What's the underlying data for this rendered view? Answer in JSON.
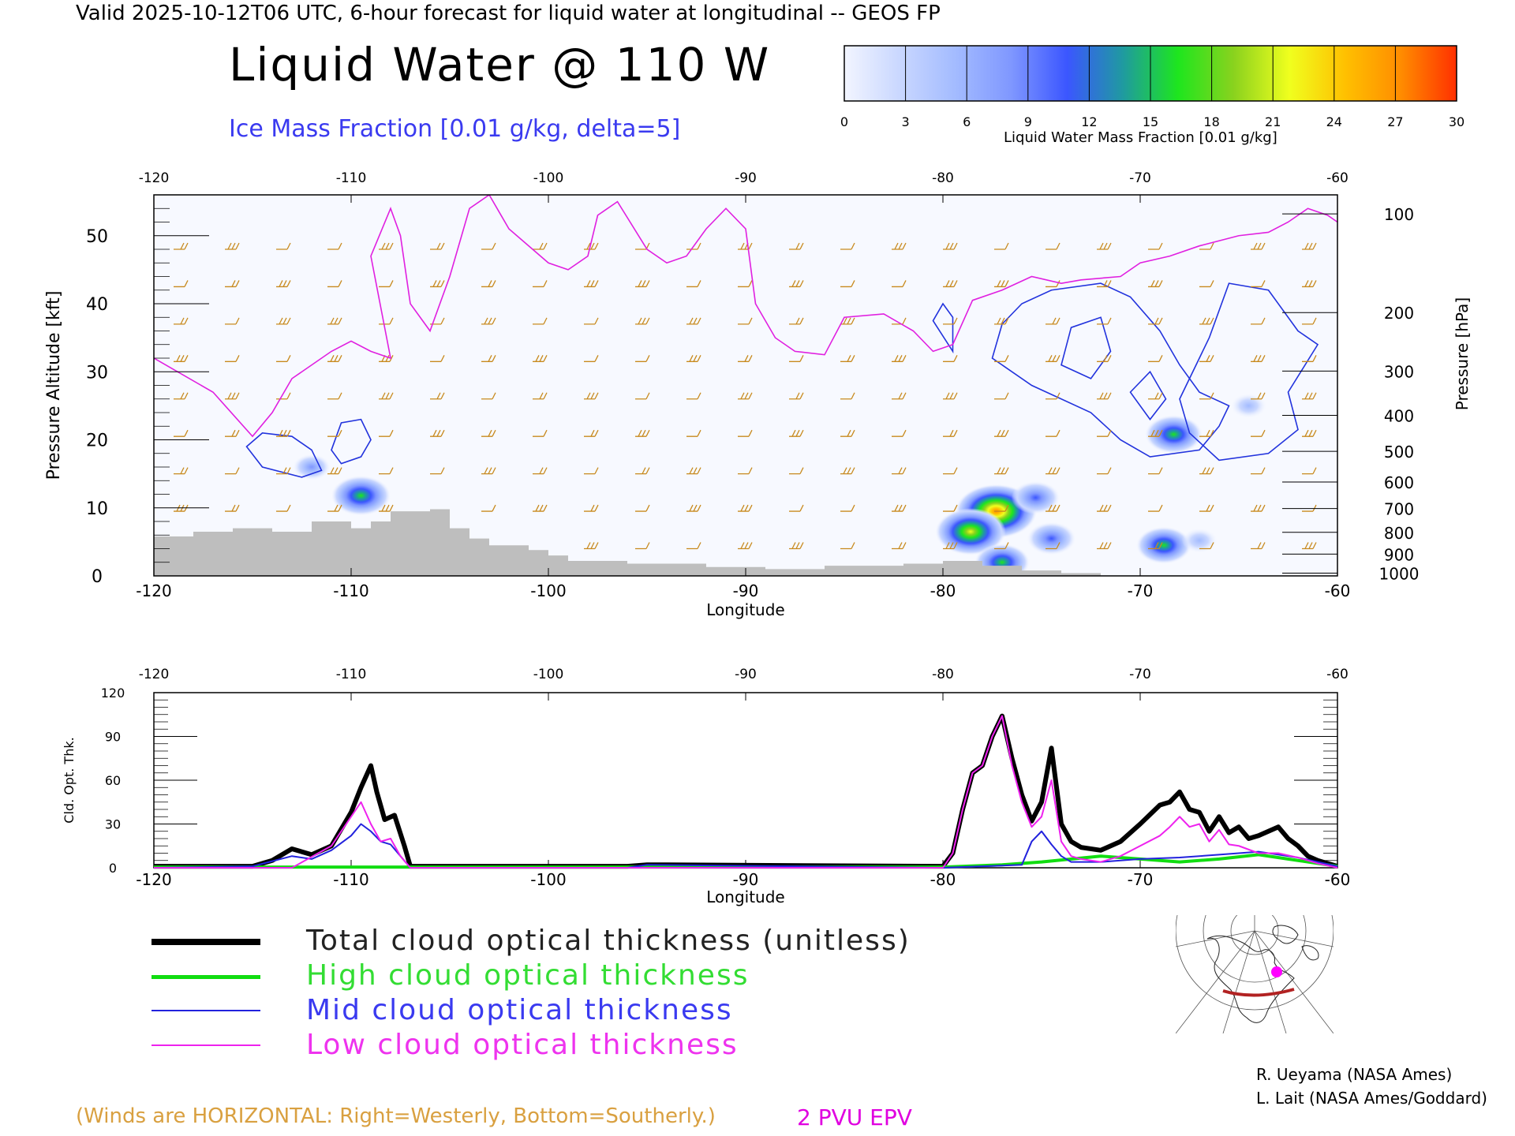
{
  "header": {
    "top_line": "Valid 2025-10-12T06 UTC, 6-hour forecast for liquid water at longitudinal -- GEOS FP",
    "title": "Liquid Water @ 110 W",
    "subtitle": "Ice Mass Fraction [0.01 g/kg, delta=5]"
  },
  "colorbar": {
    "label": "Liquid Water Mass Fraction [0.01 g/kg]",
    "ticks": [
      "0",
      "3",
      "6",
      "9",
      "12",
      "15",
      "18",
      "21",
      "24",
      "27",
      "30"
    ],
    "colors": [
      "#f2f5ff",
      "#c9d7ff",
      "#a3bbff",
      "#7f97ff",
      "#3b56ff",
      "#1f9aa0",
      "#1ee61e",
      "#8ad21e",
      "#f0ff1e",
      "#ffc000",
      "#ff8c00",
      "#ff3000"
    ]
  },
  "chart_data": [
    {
      "type": "heatmap",
      "name_hint": "cross-section",
      "xlabel": "Longitude",
      "ylabel": "Pressure Altitude [kft]",
      "ylabel_right": "Pressure [hPa]",
      "xlim": [
        -120,
        -60
      ],
      "ylim": [
        0,
        56
      ],
      "x_ticks": [
        "-120",
        "-110",
        "-100",
        "-90",
        "-80",
        "-70",
        "-60"
      ],
      "x_tick_values": [
        -120,
        -110,
        -100,
        -90,
        -80,
        -70,
        -60
      ],
      "y_ticks": [
        "0",
        "10",
        "20",
        "30",
        "40",
        "50"
      ],
      "y_tick_values": [
        0,
        10,
        20,
        30,
        40,
        50
      ],
      "pressure_ticks": [
        "100",
        "200",
        "300",
        "400",
        "500",
        "600",
        "700",
        "800",
        "900",
        "1000"
      ],
      "pressure_tick_altitudes": [
        53.2,
        38.7,
        30.1,
        23.6,
        18.3,
        13.8,
        9.9,
        6.4,
        3.2,
        0.4
      ],
      "terrain": {
        "color": "#bebebe",
        "points": [
          [
            -120,
            5.8
          ],
          [
            -118,
            6.5
          ],
          [
            -116,
            7.0
          ],
          [
            -114,
            6.5
          ],
          [
            -112,
            8.0
          ],
          [
            -110,
            7.0
          ],
          [
            -109,
            8.0
          ],
          [
            -108,
            9.5
          ],
          [
            -106,
            9.8
          ],
          [
            -105,
            7.0
          ],
          [
            -104,
            5.5
          ],
          [
            -103,
            4.5
          ],
          [
            -101,
            3.8
          ],
          [
            -100,
            3.0
          ],
          [
            -99,
            2.2
          ],
          [
            -96,
            1.8
          ],
          [
            -92,
            1.3
          ],
          [
            -89,
            1.0
          ],
          [
            -86,
            1.5
          ],
          [
            -82,
            1.8
          ],
          [
            -80,
            2.2
          ],
          [
            -78,
            1.5
          ],
          [
            -76,
            0.8
          ],
          [
            -74,
            0.4
          ],
          [
            -72,
            0.2
          ]
        ]
      },
      "liquid_water_blobs": [
        {
          "lon": -109.5,
          "alt": 11.8,
          "peak": 17
        },
        {
          "lon": -112.0,
          "alt": 16.0,
          "peak": 7
        },
        {
          "lon": -77.3,
          "alt": 9.5,
          "peak": 27
        },
        {
          "lon": -78.6,
          "alt": 6.5,
          "peak": 22
        },
        {
          "lon": -77.0,
          "alt": 2.0,
          "peak": 15
        },
        {
          "lon": -75.3,
          "alt": 11.5,
          "peak": 12
        },
        {
          "lon": -74.5,
          "alt": 5.5,
          "peak": 12
        },
        {
          "lon": -68.3,
          "alt": 20.8,
          "peak": 16
        },
        {
          "lon": -68.8,
          "alt": 4.5,
          "peak": 15
        },
        {
          "lon": -64.5,
          "alt": 25.0,
          "peak": 6
        },
        {
          "lon": -67.0,
          "alt": 5.2,
          "peak": 6
        }
      ],
      "epv_2pvu": [
        [
          -120,
          32
        ],
        [
          -117,
          27
        ],
        [
          -115,
          20.5
        ],
        [
          -114,
          24
        ],
        [
          -113,
          29
        ],
        [
          -111,
          33
        ],
        [
          -110,
          34.5
        ],
        [
          -109,
          33
        ],
        [
          -108,
          32
        ],
        [
          -109,
          47
        ],
        [
          -108,
          54
        ],
        [
          -107.5,
          50
        ],
        [
          -107,
          40
        ],
        [
          -106,
          36
        ],
        [
          -105,
          44
        ],
        [
          -104,
          54
        ],
        [
          -103,
          56
        ],
        [
          -102,
          51
        ],
        [
          -100,
          46
        ],
        [
          -99,
          45
        ],
        [
          -98,
          47
        ],
        [
          -97.5,
          53
        ],
        [
          -96.5,
          55
        ],
        [
          -95,
          48
        ],
        [
          -94,
          46
        ],
        [
          -93,
          47
        ],
        [
          -92,
          51
        ],
        [
          -91,
          54
        ],
        [
          -90,
          51
        ],
        [
          -89.5,
          40
        ],
        [
          -88.5,
          35
        ],
        [
          -87.5,
          33
        ],
        [
          -86,
          32.5
        ],
        [
          -85,
          38
        ],
        [
          -83,
          38.5
        ],
        [
          -81.5,
          36
        ],
        [
          -80.5,
          33
        ],
        [
          -79.5,
          34
        ],
        [
          -78.5,
          40.5
        ],
        [
          -77,
          42
        ],
        [
          -75.5,
          44
        ],
        [
          -74,
          43
        ],
        [
          -73,
          43.5
        ],
        [
          -71,
          44
        ],
        [
          -70,
          46
        ],
        [
          -68.5,
          47
        ],
        [
          -67,
          48.5
        ],
        [
          -65,
          50
        ],
        [
          -63.5,
          50.5
        ],
        [
          -62.5,
          52
        ],
        [
          -61.5,
          54
        ],
        [
          -60.5,
          53
        ],
        [
          -60,
          52
        ]
      ],
      "ice_contours": [
        [
          [
            -115.3,
            19
          ],
          [
            -114.5,
            21
          ],
          [
            -113,
            20.5
          ],
          [
            -112,
            18.5
          ],
          [
            -111.5,
            15.5
          ],
          [
            -112.5,
            14.5
          ],
          [
            -114.5,
            16
          ],
          [
            -115.3,
            19
          ]
        ],
        [
          [
            -111,
            18.5
          ],
          [
            -110.5,
            22.5
          ],
          [
            -109.5,
            23
          ],
          [
            -109,
            20
          ],
          [
            -109.5,
            17.5
          ],
          [
            -110.5,
            16.5
          ],
          [
            -111,
            18.5
          ]
        ],
        [
          [
            -74.5,
            42
          ],
          [
            -72,
            43
          ],
          [
            -70.5,
            41
          ],
          [
            -69,
            36
          ],
          [
            -68,
            31
          ],
          [
            -67,
            27
          ],
          [
            -65.5,
            25
          ],
          [
            -66,
            22
          ],
          [
            -67,
            18.5
          ],
          [
            -69.5,
            17.5
          ],
          [
            -71,
            20
          ],
          [
            -72.5,
            24
          ],
          [
            -75.5,
            28
          ],
          [
            -77.5,
            32
          ],
          [
            -77,
            37
          ],
          [
            -76,
            40
          ],
          [
            -74.5,
            42
          ]
        ],
        [
          [
            -66.5,
            35
          ],
          [
            -65.5,
            43
          ],
          [
            -63.5,
            42
          ],
          [
            -62,
            36
          ],
          [
            -61,
            34
          ],
          [
            -62.5,
            27
          ],
          [
            -62,
            21.5
          ],
          [
            -63.5,
            18
          ],
          [
            -66,
            17
          ],
          [
            -67.5,
            21
          ],
          [
            -68,
            26
          ],
          [
            -66.5,
            35
          ]
        ],
        [
          [
            -80.5,
            37.5
          ],
          [
            -80,
            40
          ],
          [
            -79.5,
            38
          ],
          [
            -79.5,
            33
          ],
          [
            -80.5,
            37.5
          ]
        ],
        [
          [
            -73.5,
            36.5
          ],
          [
            -72,
            38
          ],
          [
            -71.5,
            33
          ],
          [
            -72.5,
            29
          ],
          [
            -74,
            31
          ],
          [
            -73.5,
            36.5
          ]
        ],
        [
          [
            -70.5,
            27
          ],
          [
            -69.5,
            30
          ],
          [
            -68.7,
            26
          ],
          [
            -69.5,
            23
          ],
          [
            -70.5,
            27
          ]
        ]
      ]
    },
    {
      "type": "line",
      "xlabel": "Longitude",
      "ylabel": "Cld. Opt. Thk.",
      "xlim": [
        -120,
        -60
      ],
      "ylim": [
        0,
        120
      ],
      "x_ticks": [
        "-120",
        "-110",
        "-100",
        "-90",
        "-80",
        "-70",
        "-60"
      ],
      "x_tick_values": [
        -120,
        -110,
        -100,
        -90,
        -80,
        -70,
        -60
      ],
      "y_ticks": [
        "0",
        "30",
        "60",
        "90",
        "120"
      ],
      "y_tick_values": [
        0,
        30,
        60,
        90,
        120
      ],
      "series": [
        {
          "name": "Total cloud optical thickness (unitless)",
          "color": "#000000",
          "width": 6,
          "x": [
            -120,
            -115,
            -114,
            -113,
            -112,
            -111,
            -110,
            -109.5,
            -109,
            -108.7,
            -108.3,
            -107.8,
            -107.3,
            -107,
            -100,
            -96,
            -95,
            -94,
            -80,
            -79.5,
            -79,
            -78.5,
            -78,
            -77.5,
            -77,
            -76.5,
            -76,
            -75.5,
            -75,
            -74.5,
            -74,
            -73.5,
            -73,
            -72,
            -71,
            -70,
            -69,
            -68.5,
            -68,
            -67.5,
            -67,
            -66.5,
            -66,
            -65.5,
            -65,
            -64.5,
            -64,
            -63.5,
            -63,
            -62.5,
            -62,
            -61.5,
            -61,
            -60.5,
            -60
          ],
          "y": [
            1,
            1,
            5,
            13,
            9,
            15,
            38,
            55,
            70,
            52,
            33,
            36,
            15,
            1,
            1,
            1,
            2,
            2,
            1,
            10,
            40,
            65,
            70,
            90,
            104,
            75,
            50,
            32,
            45,
            82,
            30,
            18,
            14,
            12,
            18,
            30,
            43,
            45,
            52,
            40,
            38,
            25,
            35,
            24,
            28,
            20,
            22,
            25,
            28,
            20,
            15,
            8,
            5,
            3,
            1
          ]
        },
        {
          "name": "High cloud optical thickness",
          "color": "#11dd11",
          "width": 4,
          "x": [
            -120,
            -80,
            -77,
            -75,
            -72,
            -70,
            -68,
            -66,
            -64,
            -62,
            -60
          ],
          "y": [
            0.5,
            0.5,
            2,
            4,
            8,
            6,
            4,
            6,
            9,
            5,
            1
          ]
        },
        {
          "name": "Mid cloud optical thickness",
          "color": "#2222dd",
          "width": 2,
          "x": [
            -120,
            -115,
            -113,
            -112,
            -111,
            -110,
            -109.5,
            -109,
            -108.5,
            -108,
            -107.5,
            -107,
            -96,
            -95,
            -80,
            -76,
            -75.5,
            -75,
            -74.5,
            -74,
            -73.5,
            -72,
            -70,
            -68,
            -66,
            -64,
            -62,
            -60
          ],
          "y": [
            0,
            1,
            8,
            6,
            12,
            22,
            30,
            25,
            18,
            16,
            8,
            0,
            0,
            2,
            0,
            2,
            18,
            25,
            16,
            8,
            4,
            4,
            6,
            7,
            9,
            11,
            7,
            1
          ]
        },
        {
          "name": "Low cloud optical thickness",
          "color": "#ee22ee",
          "width": 2,
          "x": [
            -120,
            -113,
            -111,
            -110,
            -109.5,
            -109,
            -108.5,
            -108,
            -107.5,
            -107,
            -80,
            -79.5,
            -79,
            -78.5,
            -78,
            -77.5,
            -77,
            -76.5,
            -76,
            -75.5,
            -75,
            -74.5,
            -74,
            -73.5,
            -73,
            -72,
            -71,
            -70,
            -69,
            -68.5,
            -68,
            -67.5,
            -67,
            -66.5,
            -66,
            -65.5,
            -65,
            -64,
            -63,
            -62,
            -61,
            -60
          ],
          "y": [
            0,
            0,
            15,
            35,
            45,
            30,
            18,
            20,
            8,
            0,
            0,
            10,
            40,
            65,
            70,
            90,
            104,
            70,
            45,
            28,
            35,
            60,
            18,
            8,
            6,
            4,
            8,
            15,
            22,
            28,
            35,
            28,
            30,
            18,
            26,
            16,
            15,
            10,
            10,
            7,
            3,
            0
          ]
        }
      ]
    }
  ],
  "legend": {
    "total": "Total cloud optical thickness (unitless)",
    "high": "High cloud optical thickness",
    "mid": "Mid cloud optical thickness",
    "low": "Low cloud optical thickness"
  },
  "map_inset": {
    "marker_color": "#ff00ff",
    "track_color": "#b22222"
  },
  "footer": {
    "winds_note": "(Winds are HORIZONTAL: Right=Westerly, Bottom=Southerly.)",
    "epv_label": "2 PVU EPV",
    "credit_1": "R. Ueyama (NASA Ames)",
    "credit_2": "L. Lait (NASA Ames/Goddard)"
  }
}
